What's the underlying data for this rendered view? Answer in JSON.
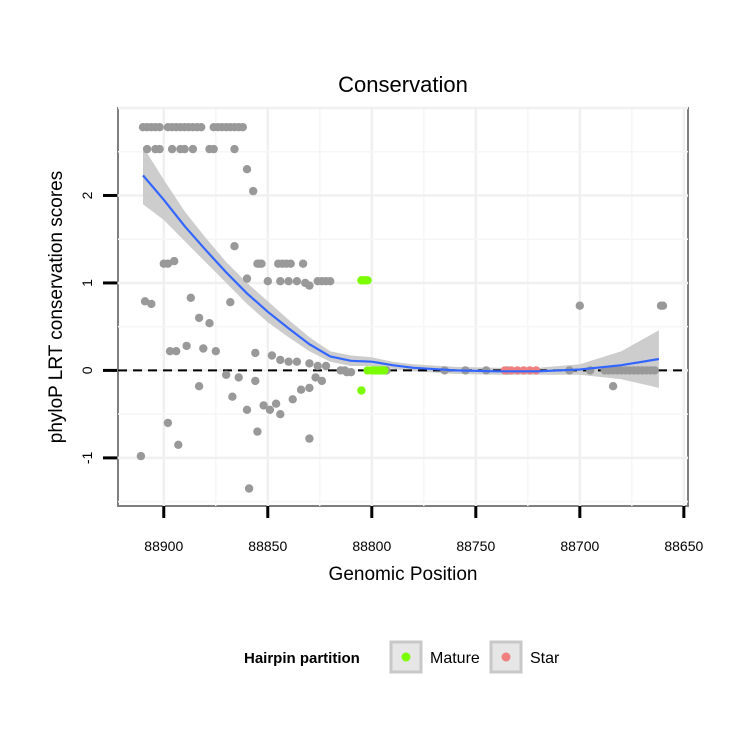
{
  "chart_data": {
    "type": "scatter",
    "title": "Conservation",
    "xlabel": "Genomic Position",
    "ylabel": "phyloP LRT conservation scores",
    "x_reversed": true,
    "xlim": [
      88922,
      88648
    ],
    "ylim": [
      -1.55,
      3.0
    ],
    "x_ticks": [
      88900,
      88850,
      88800,
      88750,
      88700,
      88650
    ],
    "x_tick_labels": [
      "88900",
      "88850",
      "88800",
      "88750",
      "88700",
      "88650"
    ],
    "y_ticks": [
      -1,
      0,
      1,
      2
    ],
    "y_tick_labels": [
      "-1",
      "0",
      "1",
      "2"
    ],
    "reference_line": {
      "y": 0,
      "style": "dashed"
    },
    "legend": {
      "title": "Hairpin partition",
      "position": "bottom",
      "entries": [
        {
          "label": "Mature",
          "color": "#7cfc00"
        },
        {
          "label": "Star",
          "color": "#f08080"
        }
      ]
    },
    "colors": {
      "other": "#999999",
      "mature": "#7cfc00",
      "star": "#f08080",
      "smooth": "#3366ff",
      "ribbon": "#c8c8c8"
    },
    "smooth_line": {
      "x": [
        88910,
        88900,
        88890,
        88880,
        88870,
        88860,
        88850,
        88840,
        88830,
        88820,
        88810,
        88800,
        88790,
        88780,
        88760,
        88740,
        88720,
        88700,
        88680,
        88662
      ],
      "y": [
        2.23,
        1.95,
        1.65,
        1.38,
        1.12,
        0.88,
        0.67,
        0.48,
        0.3,
        0.16,
        0.11,
        0.1,
        0.06,
        0.03,
        0.0,
        -0.01,
        -0.01,
        0.01,
        0.06,
        0.13
      ],
      "lower": [
        1.9,
        1.72,
        1.48,
        1.24,
        1.0,
        0.76,
        0.55,
        0.38,
        0.22,
        0.1,
        0.05,
        0.05,
        0.02,
        -0.01,
        -0.04,
        -0.05,
        -0.05,
        -0.05,
        -0.1,
        -0.2
      ],
      "upper": [
        2.56,
        2.18,
        1.82,
        1.52,
        1.24,
        1.0,
        0.79,
        0.58,
        0.38,
        0.22,
        0.17,
        0.15,
        0.1,
        0.07,
        0.04,
        0.03,
        0.03,
        0.07,
        0.22,
        0.46
      ]
    },
    "series": [
      {
        "name": "Other",
        "points": [
          [
            88910,
            2.78
          ],
          [
            88908,
            2.78
          ],
          [
            88906,
            2.78
          ],
          [
            88904,
            2.78
          ],
          [
            88902,
            2.78
          ],
          [
            88898,
            2.78
          ],
          [
            88896,
            2.78
          ],
          [
            88894,
            2.78
          ],
          [
            88892,
            2.78
          ],
          [
            88890,
            2.78
          ],
          [
            88888,
            2.78
          ],
          [
            88886,
            2.78
          ],
          [
            88884,
            2.78
          ],
          [
            88882,
            2.78
          ],
          [
            88876,
            2.78
          ],
          [
            88874,
            2.78
          ],
          [
            88872,
            2.78
          ],
          [
            88870,
            2.78
          ],
          [
            88868,
            2.78
          ],
          [
            88866,
            2.78
          ],
          [
            88864,
            2.78
          ],
          [
            88862,
            2.78
          ],
          [
            88908,
            2.53
          ],
          [
            88904,
            2.53
          ],
          [
            88902,
            2.53
          ],
          [
            88896,
            2.53
          ],
          [
            88892,
            2.53
          ],
          [
            88890,
            2.53
          ],
          [
            88886,
            2.53
          ],
          [
            88878,
            2.53
          ],
          [
            88876,
            2.53
          ],
          [
            88866,
            2.53
          ],
          [
            88860,
            2.3
          ],
          [
            88857,
            2.05
          ],
          [
            88866,
            1.42
          ],
          [
            88860,
            1.05
          ],
          [
            88850,
            1.02
          ],
          [
            88855,
            1.22
          ],
          [
            88854,
            1.22
          ],
          [
            88853,
            1.22
          ],
          [
            88845,
            1.22
          ],
          [
            88843,
            1.22
          ],
          [
            88841,
            1.22
          ],
          [
            88839,
            1.22
          ],
          [
            88833,
            1.22
          ],
          [
            88844,
            1.02
          ],
          [
            88840,
            1.02
          ],
          [
            88836,
            1.02
          ],
          [
            88832,
            1.0
          ],
          [
            88830,
            0.97
          ],
          [
            88826,
            1.02
          ],
          [
            88824,
            1.02
          ],
          [
            88822,
            1.02
          ],
          [
            88820,
            1.02
          ],
          [
            88900,
            1.22
          ],
          [
            88898,
            1.22
          ],
          [
            88895,
            1.25
          ],
          [
            88909,
            0.79
          ],
          [
            88906,
            0.76
          ],
          [
            88887,
            0.83
          ],
          [
            88883,
            0.6
          ],
          [
            88878,
            0.54
          ],
          [
            88868,
            0.78
          ],
          [
            88897,
            0.22
          ],
          [
            88894,
            0.22
          ],
          [
            88889,
            0.28
          ],
          [
            88881,
            0.25
          ],
          [
            88875,
            0.22
          ],
          [
            88856,
            0.2
          ],
          [
            88848,
            0.17
          ],
          [
            88844,
            0.12
          ],
          [
            88840,
            0.1
          ],
          [
            88836,
            0.1
          ],
          [
            88830,
            0.08
          ],
          [
            88826,
            0.05
          ],
          [
            88822,
            0.05
          ],
          [
            88870,
            -0.05
          ],
          [
            88864,
            -0.08
          ],
          [
            88856,
            -0.12
          ],
          [
            88883,
            -0.18
          ],
          [
            88867,
            -0.3
          ],
          [
            88852,
            -0.4
          ],
          [
            88846,
            -0.38
          ],
          [
            88838,
            -0.33
          ],
          [
            88834,
            -0.22
          ],
          [
            88830,
            -0.2
          ],
          [
            88827,
            -0.08
          ],
          [
            88824,
            -0.12
          ],
          [
            88860,
            -0.45
          ],
          [
            88849,
            -0.45
          ],
          [
            88844,
            -0.5
          ],
          [
            88855,
            -0.7
          ],
          [
            88898,
            -0.6
          ],
          [
            88893,
            -0.85
          ],
          [
            88830,
            -0.78
          ],
          [
            88911,
            -0.98
          ],
          [
            88859,
            -1.35
          ],
          [
            88815,
            0.0
          ],
          [
            88813,
            0.0
          ],
          [
            88812,
            -0.02
          ],
          [
            88810,
            -0.02
          ],
          [
            88793,
            0.0
          ],
          [
            88765,
            0.0
          ],
          [
            88755,
            0.0
          ],
          [
            88745,
            0.0
          ],
          [
            88735,
            0.0
          ],
          [
            88705,
            0.0
          ],
          [
            88695,
            0.0
          ],
          [
            88688,
            0.0
          ],
          [
            88686,
            0.0
          ],
          [
            88684,
            0.0
          ],
          [
            88682,
            0.0
          ],
          [
            88680,
            0.0
          ],
          [
            88678,
            0.0
          ],
          [
            88676,
            0.0
          ],
          [
            88674,
            0.0
          ],
          [
            88672,
            0.0
          ],
          [
            88670,
            0.0
          ],
          [
            88668,
            0.0
          ],
          [
            88666,
            0.0
          ],
          [
            88664,
            0.0
          ],
          [
            88684,
            -0.18
          ],
          [
            88700,
            0.74
          ],
          [
            88661,
            0.74
          ],
          [
            88660,
            0.74
          ]
        ]
      },
      {
        "name": "Mature",
        "points": [
          [
            88805,
            1.03
          ],
          [
            88804,
            1.03
          ],
          [
            88803,
            1.03
          ],
          [
            88802,
            1.03
          ],
          [
            88805,
            -0.23
          ],
          [
            88802,
            0.0
          ],
          [
            88800,
            0.0
          ],
          [
            88799,
            0.0
          ],
          [
            88798,
            0.0
          ],
          [
            88797,
            0.0
          ],
          [
            88796,
            0.0
          ],
          [
            88795,
            0.0
          ],
          [
            88794,
            0.0
          ]
        ]
      },
      {
        "name": "Star",
        "points": [
          [
            88736,
            0.0
          ],
          [
            88733,
            0.0
          ],
          [
            88730,
            0.0
          ],
          [
            88727,
            0.0
          ],
          [
            88724,
            0.0
          ],
          [
            88721,
            0.0
          ]
        ]
      }
    ]
  }
}
